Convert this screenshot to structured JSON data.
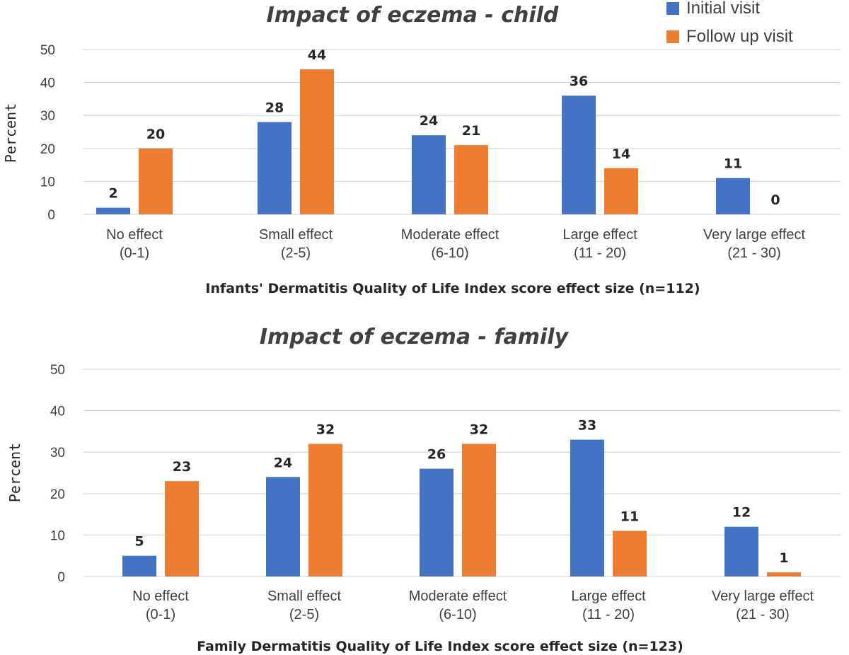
{
  "legend": {
    "initial_label": "Initial visit",
    "followup_label": "Follow up visit"
  },
  "colors": {
    "initial": "#4472c4",
    "followup": "#ed7d31"
  },
  "chart_data": [
    {
      "type": "bar",
      "title": "Impact of eczema - child",
      "xlabel": "Infants' Dermatitis Quality of Life Index score effect size (n=112)",
      "ylabel": "Percent",
      "ylim": [
        0,
        50
      ],
      "yticks": [
        0,
        10,
        20,
        30,
        40,
        50
      ],
      "categories": [
        [
          "No effect",
          "(0-1)"
        ],
        [
          "Small effect",
          "(2-5)"
        ],
        [
          "Moderate effect",
          "(6-10)"
        ],
        [
          "Large effect",
          "(11 - 20)"
        ],
        [
          "Very large effect",
          "(21 - 30)"
        ]
      ],
      "series": [
        {
          "name": "Initial visit",
          "values": [
            2,
            28,
            24,
            36,
            11
          ]
        },
        {
          "name": "Follow up visit",
          "values": [
            20,
            44,
            21,
            14,
            0
          ]
        }
      ],
      "legend_position": "top-right"
    },
    {
      "type": "bar",
      "title": "Impact of eczema - family",
      "xlabel": "Family Dermatitis Quality of Life Index score effect size (n=123)",
      "ylabel": "Percent",
      "ylim": [
        0,
        50
      ],
      "yticks": [
        0,
        10,
        20,
        30,
        40,
        50
      ],
      "categories": [
        [
          "No effect",
          "(0-1)"
        ],
        [
          "Small effect",
          "(2-5)"
        ],
        [
          "Moderate effect",
          "(6-10)"
        ],
        [
          "Large effect",
          "(11 - 20)"
        ],
        [
          "Very large effect",
          "(21 - 30)"
        ]
      ],
      "series": [
        {
          "name": "Initial visit",
          "values": [
            5,
            24,
            26,
            33,
            12
          ]
        },
        {
          "name": "Follow up visit",
          "values": [
            23,
            32,
            32,
            11,
            1
          ]
        }
      ]
    }
  ]
}
